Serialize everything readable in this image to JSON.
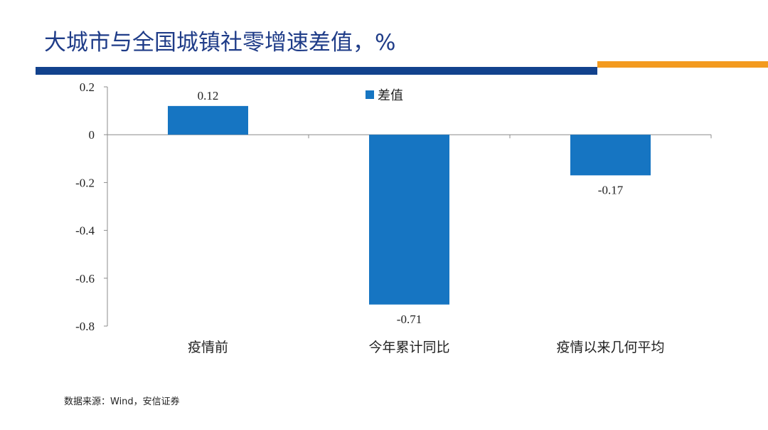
{
  "header": {
    "title": "大城市与全国城镇社零增速差值，%",
    "accent_primary": "#12428d",
    "accent_secondary": "#f39a1e"
  },
  "footer": {
    "source": "数据来源：Wind，安信证券"
  },
  "chart_data": {
    "type": "bar",
    "categories": [
      "疫情前",
      "今年累计同比",
      "疫情以来几何平均"
    ],
    "series": [
      {
        "name": "差值",
        "values": [
          0.12,
          -0.71,
          -0.17
        ],
        "color": "#1675c2"
      }
    ],
    "data_labels": [
      "0.12",
      "-0.71",
      "-0.17"
    ],
    "ylim": [
      -0.8,
      0.2
    ],
    "yticks": [
      0.2,
      0,
      -0.2,
      -0.4,
      -0.6,
      -0.8
    ],
    "ytick_labels": [
      "0.2",
      "0",
      "-0.2",
      "-0.4",
      "-0.6",
      "-0.8"
    ],
    "legend_position": "top-center",
    "grid": false,
    "title": "",
    "xlabel": "",
    "ylabel": ""
  }
}
